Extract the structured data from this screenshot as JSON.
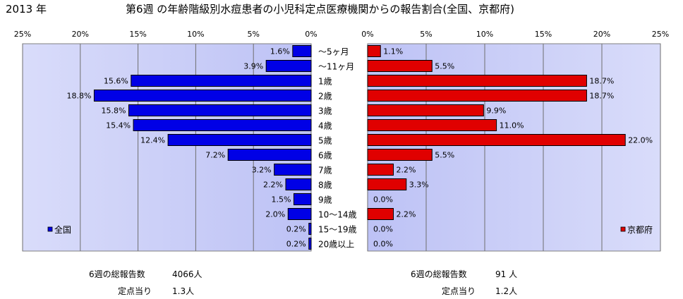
{
  "header": {
    "year": "2013 年",
    "title": "第6週 の年齢階級別水痘患者の小児科定点医療機関からの報告割合(全国、京都府)"
  },
  "chart_data": {
    "type": "bar",
    "orientation": "horizontal-butterfly",
    "categories": [
      "～5ヶ月",
      "～11ヶ月",
      "1歳",
      "2歳",
      "3歳",
      "4歳",
      "5歳",
      "6歳",
      "7歳",
      "8歳",
      "9歳",
      "10～14歳",
      "15～19歳",
      "20歳以上"
    ],
    "xlim": [
      0,
      25
    ],
    "x_ticks": [
      "0%",
      "5%",
      "10%",
      "15%",
      "20%",
      "25%"
    ],
    "grid": true,
    "series": [
      {
        "name": "全国",
        "side": "left",
        "color": "#0000e6",
        "values": [
          1.6,
          3.9,
          15.6,
          18.8,
          15.8,
          15.4,
          12.4,
          7.2,
          3.2,
          2.2,
          1.5,
          2.0,
          0.2,
          0.2
        ],
        "labels": [
          "1.6%",
          "3.9%",
          "15.6%",
          "18.8%",
          "15.8%",
          "15.4%",
          "12.4%",
          "7.2%",
          "3.2%",
          "2.2%",
          "1.5%",
          "2.0%",
          "0.2%",
          "0.2%"
        ],
        "legend_position": "bottom-left"
      },
      {
        "name": "京都府",
        "side": "right",
        "color": "#e00000",
        "values": [
          1.1,
          5.5,
          18.7,
          18.7,
          9.9,
          11.0,
          22.0,
          5.5,
          2.2,
          3.3,
          0.0,
          2.2,
          0.0,
          0.0
        ],
        "labels": [
          "1.1%",
          "5.5%",
          "18.7%",
          "18.7%",
          "9.9%",
          "11.0%",
          "22.0%",
          "5.5%",
          "2.2%",
          "3.3%",
          "0.0%",
          "2.2%",
          "0.0%",
          "0.0%"
        ],
        "legend_position": "bottom-right"
      }
    ],
    "plot_background": "#c7cbf7"
  },
  "stats": {
    "left": {
      "total_label": "6週の総報告数",
      "total_value": "4066人",
      "per_label": "定点当り",
      "per_value": "1.3人"
    },
    "right": {
      "total_label": "6週の総報告数",
      "total_value": "91 人",
      "per_label": "定点当り",
      "per_value": "1.2人"
    }
  }
}
